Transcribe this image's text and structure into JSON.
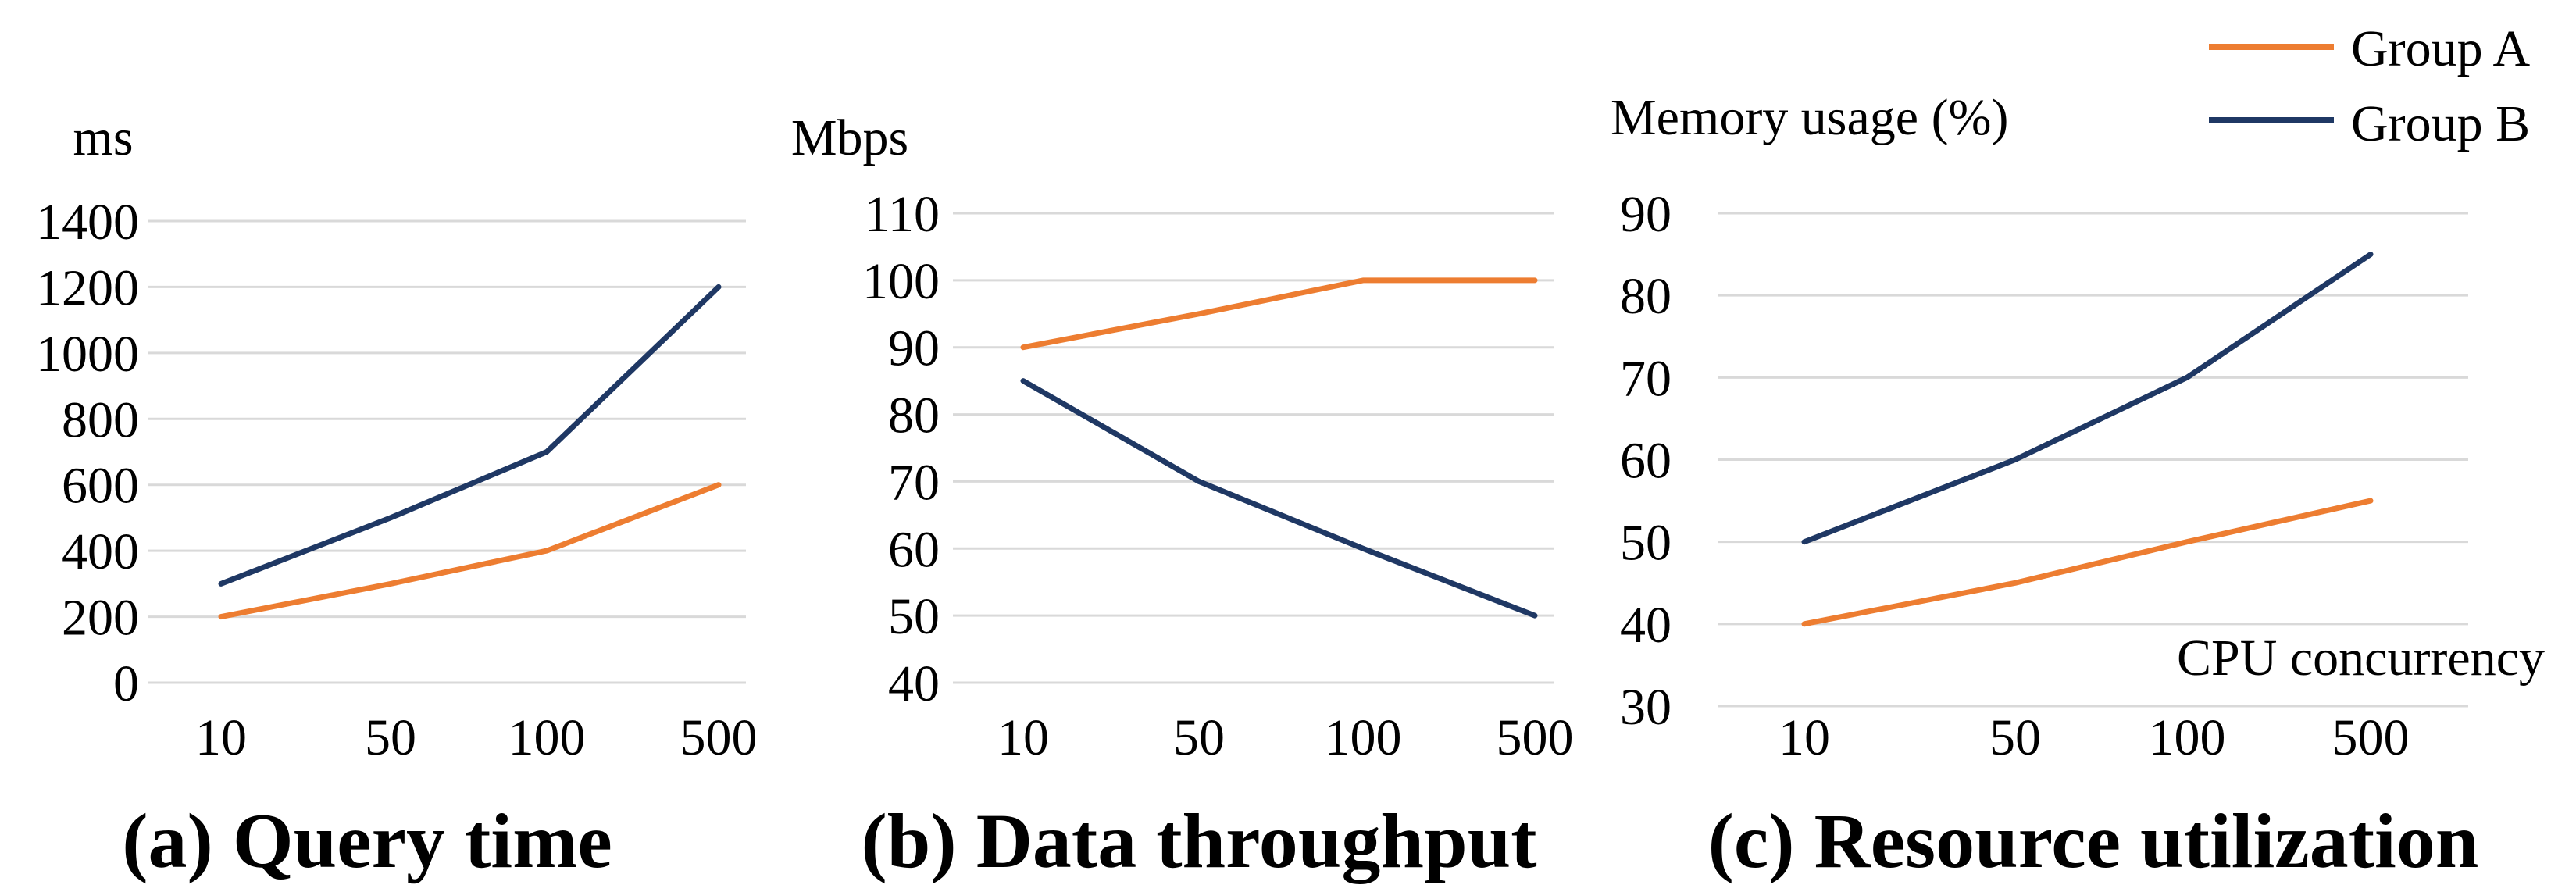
{
  "legend": {
    "entries": [
      {
        "name": "Group A",
        "color": "#ED7D31"
      },
      {
        "name": "Group B",
        "color": "#1F3864"
      }
    ]
  },
  "chart_data": [
    {
      "type": "line",
      "caption": "(a) Query time",
      "ylabel": "ms",
      "xlabel": "",
      "categories": [
        "10",
        "50",
        "100",
        "500"
      ],
      "yticks": [
        0,
        200,
        400,
        600,
        800,
        1000,
        1200,
        1400
      ],
      "ylim": [
        0,
        1400
      ],
      "grid": true,
      "series": [
        {
          "name": "Group A",
          "color": "#ED7D31",
          "values": [
            200,
            300,
            400,
            600
          ]
        },
        {
          "name": "Group B",
          "color": "#1F3864",
          "values": [
            300,
            500,
            700,
            1200
          ]
        }
      ]
    },
    {
      "type": "line",
      "caption": "(b) Data throughput",
      "ylabel": "Mbps",
      "xlabel": "",
      "categories": [
        "10",
        "50",
        "100",
        "500"
      ],
      "yticks": [
        40,
        50,
        60,
        70,
        80,
        90,
        100,
        110
      ],
      "ylim": [
        40,
        110
      ],
      "grid": true,
      "series": [
        {
          "name": "Group A",
          "color": "#ED7D31",
          "values": [
            90,
            95,
            100,
            100
          ]
        },
        {
          "name": "Group B",
          "color": "#1F3864",
          "values": [
            85,
            70,
            60,
            50
          ]
        }
      ]
    },
    {
      "type": "line",
      "caption": "(c) Resource utilization",
      "ylabel": "Memory usage (%)",
      "xlabel": "CPU concurrency",
      "categories": [
        "10",
        "50",
        "100",
        "500"
      ],
      "yticks": [
        30,
        40,
        50,
        60,
        70,
        80,
        90
      ],
      "ylim": [
        30,
        90
      ],
      "grid": true,
      "series": [
        {
          "name": "Group A",
          "color": "#ED7D31",
          "values": [
            40,
            45,
            50,
            55
          ]
        },
        {
          "name": "Group B",
          "color": "#1F3864",
          "values": [
            50,
            60,
            70,
            85
          ]
        }
      ]
    }
  ]
}
